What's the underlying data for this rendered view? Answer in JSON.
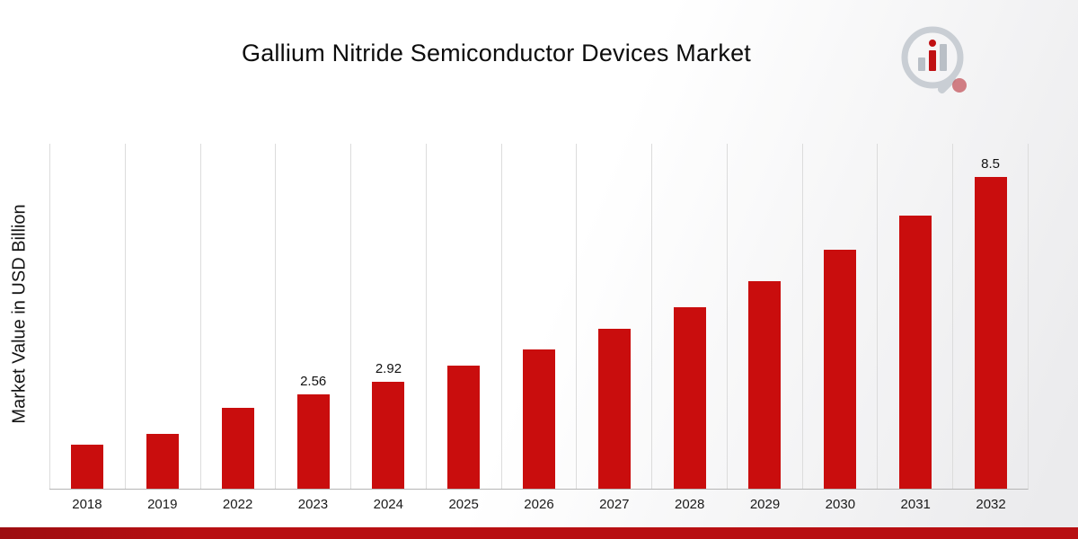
{
  "page": {
    "background_start": "#ffffff",
    "background_end": "#ebebed"
  },
  "branding": {
    "logo_icon": "bar-chart-magnifier-logo"
  },
  "footer": {
    "bar_color": "#b80f12"
  },
  "chart_data": {
    "type": "bar",
    "title": "Gallium Nitride Semiconductor Devices Market",
    "ylabel": "Market Value in USD Billion",
    "xlabel": "",
    "categories": [
      "2018",
      "2019",
      "2022",
      "2023",
      "2024",
      "2025",
      "2026",
      "2027",
      "2028",
      "2029",
      "2030",
      "2031",
      "2032"
    ],
    "values": [
      1.2,
      1.5,
      2.2,
      2.56,
      2.92,
      3.35,
      3.8,
      4.35,
      4.95,
      5.65,
      6.5,
      7.45,
      8.5
    ],
    "data_labels": [
      "",
      "",
      "",
      "2.56",
      "2.92",
      "",
      "",
      "",
      "",
      "",
      "",
      "",
      "8.5"
    ],
    "ylim": [
      0,
      9.4
    ],
    "bar_color": "#c90d0d",
    "gridlines": "vertical",
    "legend": "none"
  }
}
